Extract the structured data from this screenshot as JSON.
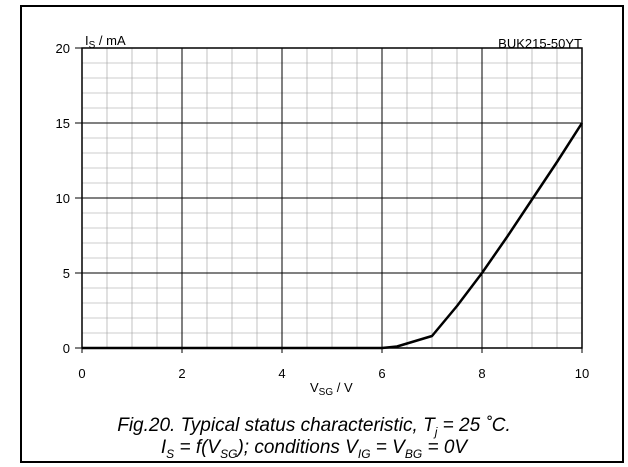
{
  "chart_data": {
    "type": "line",
    "title": "BUK215-50YT",
    "ylabel": {
      "main": "I",
      "sub": "S",
      "unit": " /  mA"
    },
    "xlabel": {
      "main": "V",
      "sub": "SG",
      "unit": " /  V"
    },
    "xlim": [
      0,
      10
    ],
    "ylim": [
      0,
      20
    ],
    "xticks": [
      0,
      2,
      4,
      6,
      8,
      10
    ],
    "yticks": [
      0,
      5,
      10,
      15,
      20
    ],
    "grid": true,
    "series": [
      {
        "x": [
          0,
          2,
          4,
          6,
          6.3,
          6.6,
          7.0,
          7.5,
          8.0,
          8.5,
          9.0,
          9.5,
          10.0
        ],
        "y": [
          0,
          0,
          0,
          0,
          0.1,
          0.4,
          0.8,
          2.8,
          5.0,
          7.4,
          9.9,
          12.4,
          15.0
        ]
      }
    ]
  },
  "caption": {
    "line1_pre": "Fig.20.   Typical status characteristic, T",
    "line1_sub": "j",
    "line1_post": " = 25 ˚C.",
    "line2_a": "I",
    "line2_a_sub": "S",
    "line2_b": " = f(V",
    "line2_b_sub": "SG",
    "line2_c": "); conditions V",
    "line2_c_sub": "IG",
    "line2_d": " = V",
    "line2_d_sub": "BG",
    "line2_e": " = 0V"
  }
}
